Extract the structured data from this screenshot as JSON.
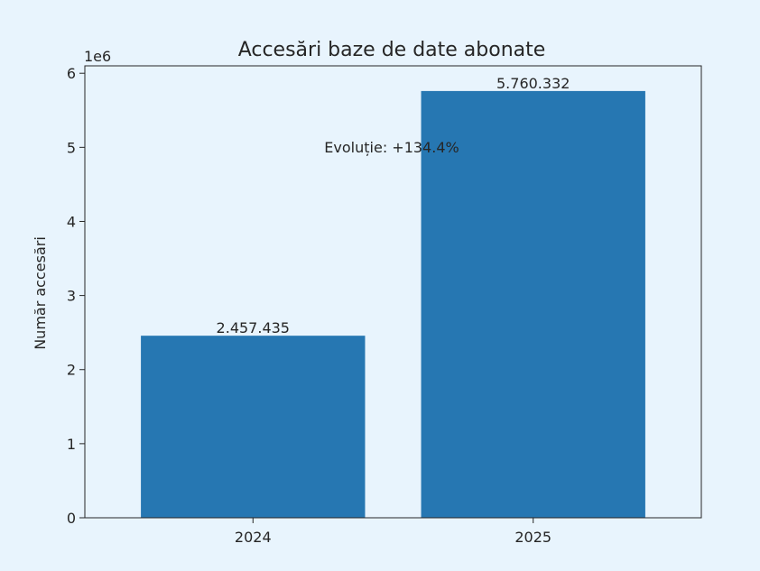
{
  "chart_data": {
    "type": "bar",
    "title": "Accesări baze de date abonate",
    "xlabel": "",
    "ylabel": "Număr accesări",
    "y_exponent_label": "1e6",
    "categories": [
      "2024",
      "2025"
    ],
    "values": [
      2457435,
      5760332
    ],
    "value_labels": [
      "2.457.435",
      "5.760.332"
    ],
    "ylim": [
      0,
      6100000
    ],
    "yticks": [
      0,
      1,
      2,
      3,
      4,
      5,
      6
    ],
    "ytick_labels": [
      "0",
      "1",
      "2",
      "3",
      "4",
      "5",
      "6"
    ],
    "annotation": "Evoluție: +134.4%",
    "bar_color": "#2677b2",
    "grid": false,
    "legend": "none"
  }
}
